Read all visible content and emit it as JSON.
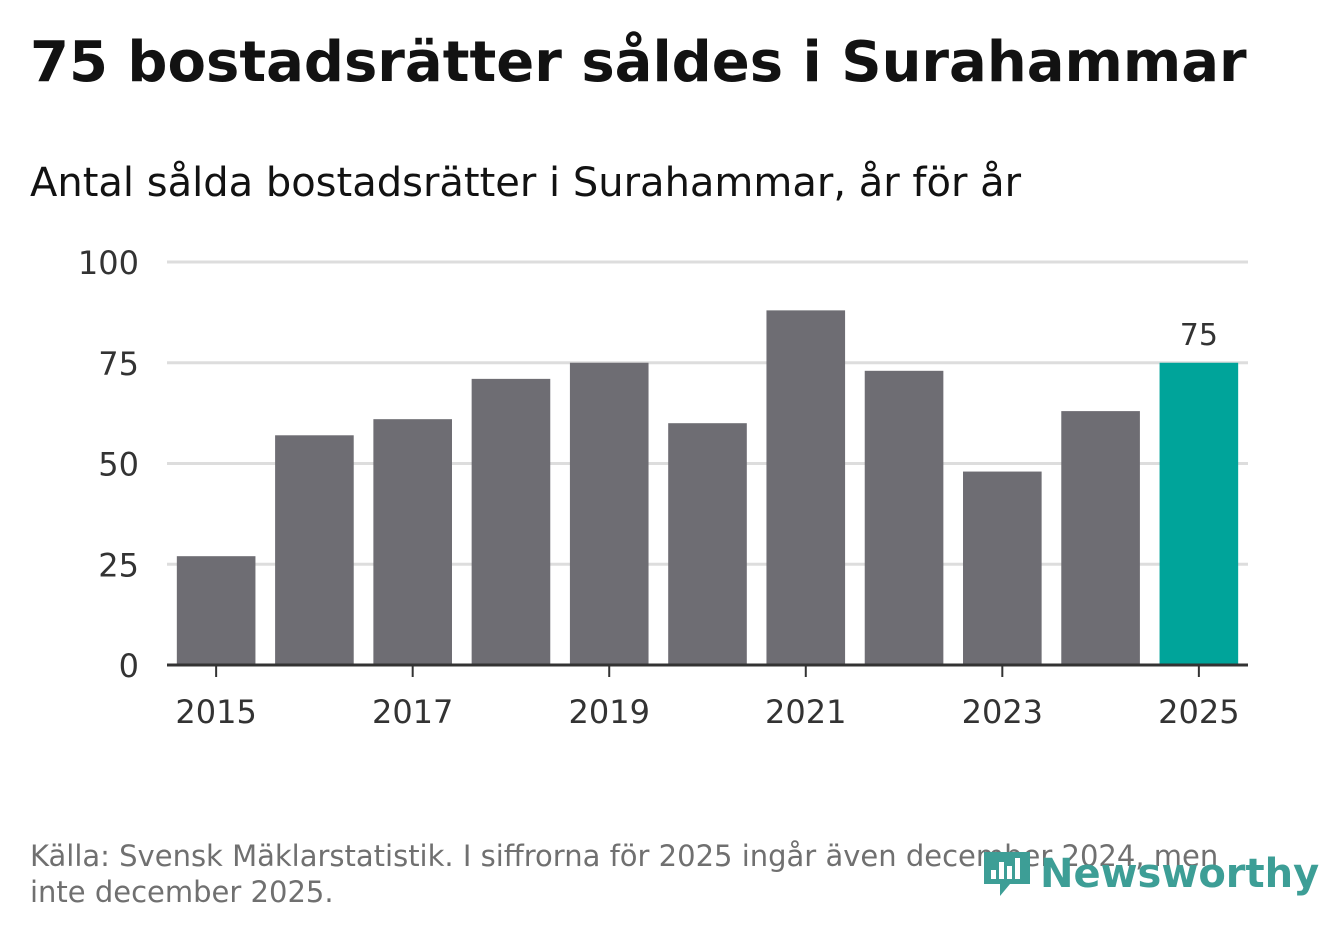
{
  "title": "75 bostadsrätter såldes i Surahammar",
  "subtitle": "Antal sålda bostadsrätter i Surahammar, år för år",
  "source": "Källa: Svensk Mäklarstatistik. I siffrorna för 2025 ingår även december 2024, men inte december 2025.",
  "logo": {
    "text": "Newsworthy",
    "icon": "newsworthy-logo-icon",
    "color": "#3d9e96"
  },
  "chart_data": {
    "type": "bar",
    "title": "Antal sålda bostadsrätter i Surahammar, år för år",
    "xlabel": "",
    "ylabel": "",
    "categories": [
      "2015",
      "2016",
      "2017",
      "2018",
      "2019",
      "2020",
      "2021",
      "2022",
      "2023",
      "2024",
      "2025"
    ],
    "x_tick_labels": [
      "2015",
      "2017",
      "2019",
      "2021",
      "2023",
      "2025"
    ],
    "values": [
      27,
      57,
      61,
      71,
      75,
      60,
      88,
      73,
      48,
      63,
      75
    ],
    "ylim": [
      0,
      100
    ],
    "y_ticks": [
      0,
      25,
      50,
      75,
      100
    ],
    "grid": true,
    "highlight": {
      "category": "2025",
      "label": "75"
    },
    "colors": {
      "bar": "#6e6d73",
      "highlight": "#00a49a",
      "grid": "#dddddd",
      "axis": "#333333"
    }
  }
}
